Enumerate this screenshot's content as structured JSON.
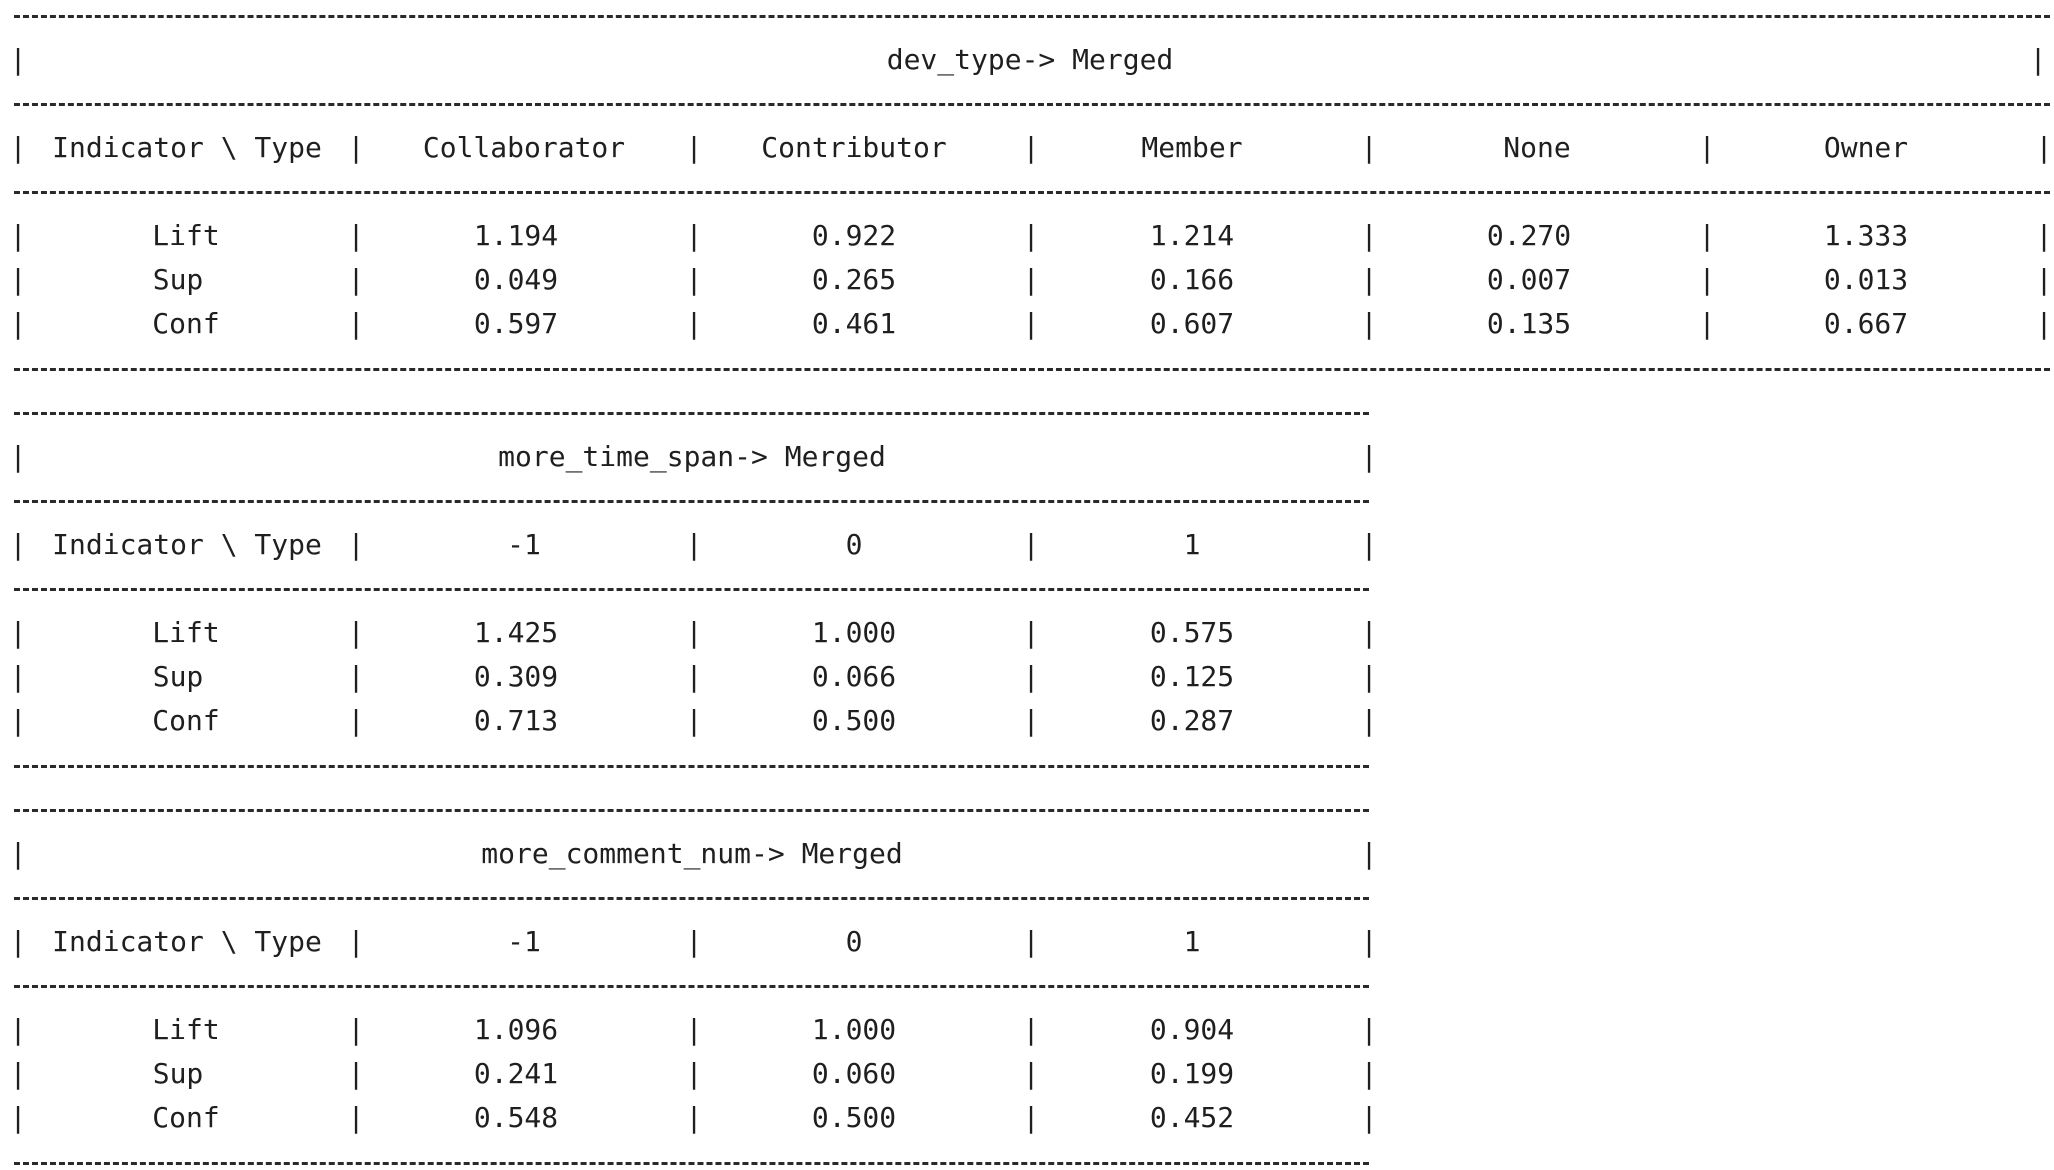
{
  "bar_char": "|",
  "tables": [
    {
      "title": "dev_type-> Merged",
      "header_label": "Indicator \\ Type",
      "columns": [
        "Collaborator",
        "Contributor",
        "Member",
        "None",
        "Owner"
      ],
      "rows": [
        {
          "label": "Lift",
          "values": [
            "1.194",
            "0.922",
            "1.214",
            "0.270",
            "1.333"
          ]
        },
        {
          "label": "Sup",
          "values": [
            "0.049",
            "0.265",
            "0.166",
            "0.007",
            "0.013"
          ]
        },
        {
          "label": "Conf",
          "values": [
            "0.597",
            "0.461",
            "0.607",
            "0.135",
            "0.667"
          ]
        }
      ]
    },
    {
      "title": "more_time_span-> Merged",
      "header_label": "Indicator \\ Type",
      "columns": [
        "-1",
        "0",
        "1"
      ],
      "rows": [
        {
          "label": "Lift",
          "values": [
            "1.425",
            "1.000",
            "0.575"
          ]
        },
        {
          "label": "Sup",
          "values": [
            "0.309",
            "0.066",
            "0.125"
          ]
        },
        {
          "label": "Conf",
          "values": [
            "0.713",
            "0.500",
            "0.287"
          ]
        }
      ]
    },
    {
      "title": "more_comment_num-> Merged",
      "header_label": "Indicator \\ Type",
      "columns": [
        "-1",
        "0",
        "1"
      ],
      "rows": [
        {
          "label": "Lift",
          "values": [
            "1.096",
            "1.000",
            "0.904"
          ]
        },
        {
          "label": "Sup",
          "values": [
            "0.241",
            "0.060",
            "0.199"
          ]
        },
        {
          "label": "Conf",
          "values": [
            "0.548",
            "0.500",
            "0.452"
          ]
        }
      ]
    }
  ]
}
